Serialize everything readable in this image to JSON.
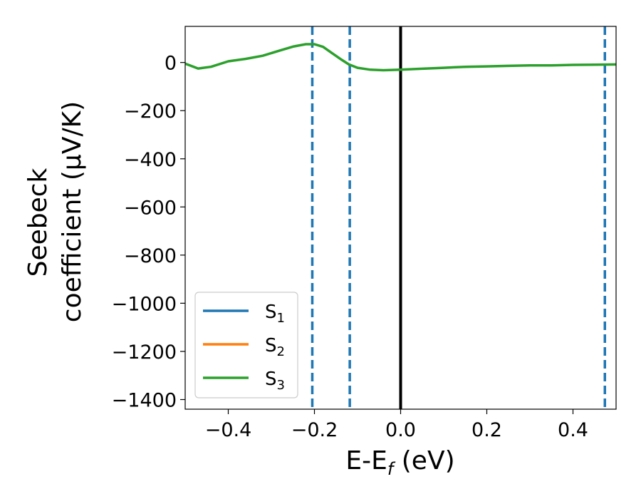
{
  "chart_data": {
    "type": "line",
    "xlabel": "E-E",
    "xlabel_sub": "f",
    "xlabel_unit": " (eV)",
    "ylabel_line1": "Seebeck",
    "ylabel_line2": "coefficient  (μV/K)",
    "xlim": [
      -0.5,
      0.5
    ],
    "ylim": [
      -1440,
      150
    ],
    "x_ticks": [
      -0.4,
      -0.2,
      0.0,
      0.2,
      0.4
    ],
    "x_tick_labels": [
      "−0.4",
      "−0.2",
      "0.0",
      "0.2",
      "0.4"
    ],
    "y_ticks": [
      0,
      -200,
      -400,
      -600,
      -800,
      -1000,
      -1200,
      -1400
    ],
    "y_tick_labels": [
      "0",
      "−200",
      "−400",
      "−600",
      "−800",
      "−1000",
      "−1200",
      "−1400"
    ],
    "grid": false,
    "legend_position": "lower-left",
    "series": [
      {
        "name": "S",
        "sub": "1",
        "color": "#1f77b4",
        "x": [],
        "y": []
      },
      {
        "name": "S",
        "sub": "2",
        "color": "#ff7f0e",
        "x": [],
        "y": []
      },
      {
        "name": "S",
        "sub": "3",
        "color": "#2ca02c",
        "x": [
          -0.5,
          -0.47,
          -0.44,
          -0.4,
          -0.36,
          -0.32,
          -0.28,
          -0.25,
          -0.22,
          -0.2,
          -0.18,
          -0.16,
          -0.14,
          -0.12,
          -0.1,
          -0.07,
          -0.04,
          0.0,
          0.05,
          0.1,
          0.15,
          0.2,
          0.25,
          0.3,
          0.35,
          0.4,
          0.45,
          0.5
        ],
        "y": [
          -5,
          -25,
          -18,
          5,
          15,
          28,
          50,
          66,
          76,
          76,
          65,
          40,
          15,
          -8,
          -22,
          -30,
          -32,
          -30,
          -26,
          -22,
          -18,
          -16,
          -14,
          -12,
          -12,
          -10,
          -9,
          -8
        ]
      }
    ],
    "vlines": [
      {
        "x": -0.205,
        "color": "#1f77b4",
        "style": "dashed"
      },
      {
        "x": -0.118,
        "color": "#1f77b4",
        "style": "dashed"
      },
      {
        "x": 0.474,
        "color": "#1f77b4",
        "style": "dashed"
      },
      {
        "x": 0.0,
        "color": "#000000",
        "style": "solid"
      }
    ]
  }
}
